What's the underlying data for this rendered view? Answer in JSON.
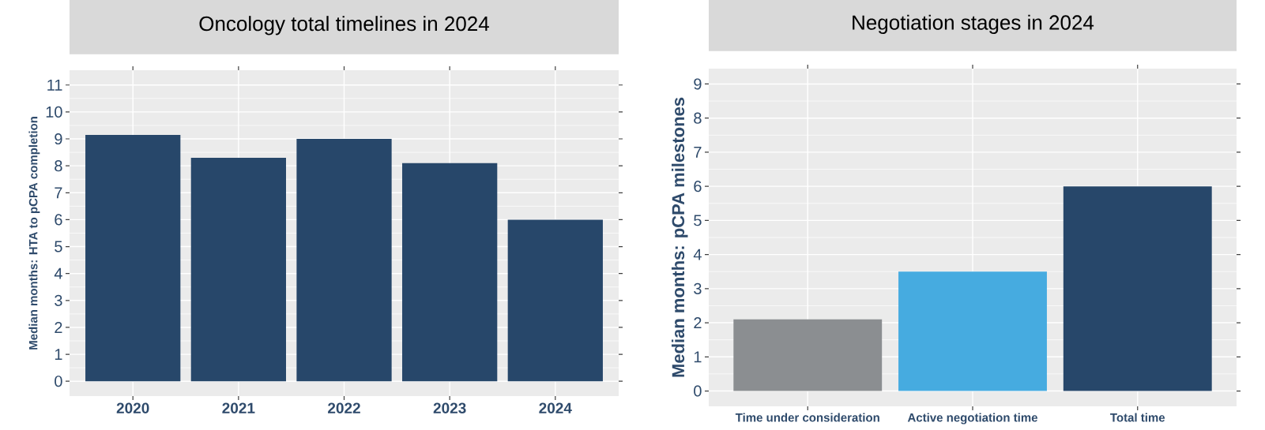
{
  "chart_data": [
    {
      "type": "bar",
      "title": "Oncology total timelines in 2024",
      "ylabel": "Median months: HTA to pCPA completion",
      "categories": [
        "2020",
        "2021",
        "2022",
        "2023",
        "2024"
      ],
      "values": [
        9.15,
        8.3,
        9.0,
        8.1,
        6.0
      ],
      "color": "#27476a",
      "ylim": [
        -0.55,
        11.55
      ],
      "yticks": [
        0,
        1,
        2,
        3,
        4,
        5,
        6,
        7,
        8,
        9,
        10,
        11
      ],
      "grid": true
    },
    {
      "type": "bar",
      "title": "Negotiation stages in 2024",
      "ylabel": "Median months: pCPA milestones",
      "categories": [
        "Time under consideration",
        "Active negotiation time",
        "Total time"
      ],
      "values": [
        2.1,
        3.5,
        6.0
      ],
      "colors": [
        "#8b8e91",
        "#46abe0",
        "#27476a"
      ],
      "ylim": [
        -0.45,
        9.45
      ],
      "yticks": [
        0,
        1,
        2,
        3,
        4,
        5,
        6,
        7,
        8,
        9
      ],
      "grid": true
    }
  ]
}
